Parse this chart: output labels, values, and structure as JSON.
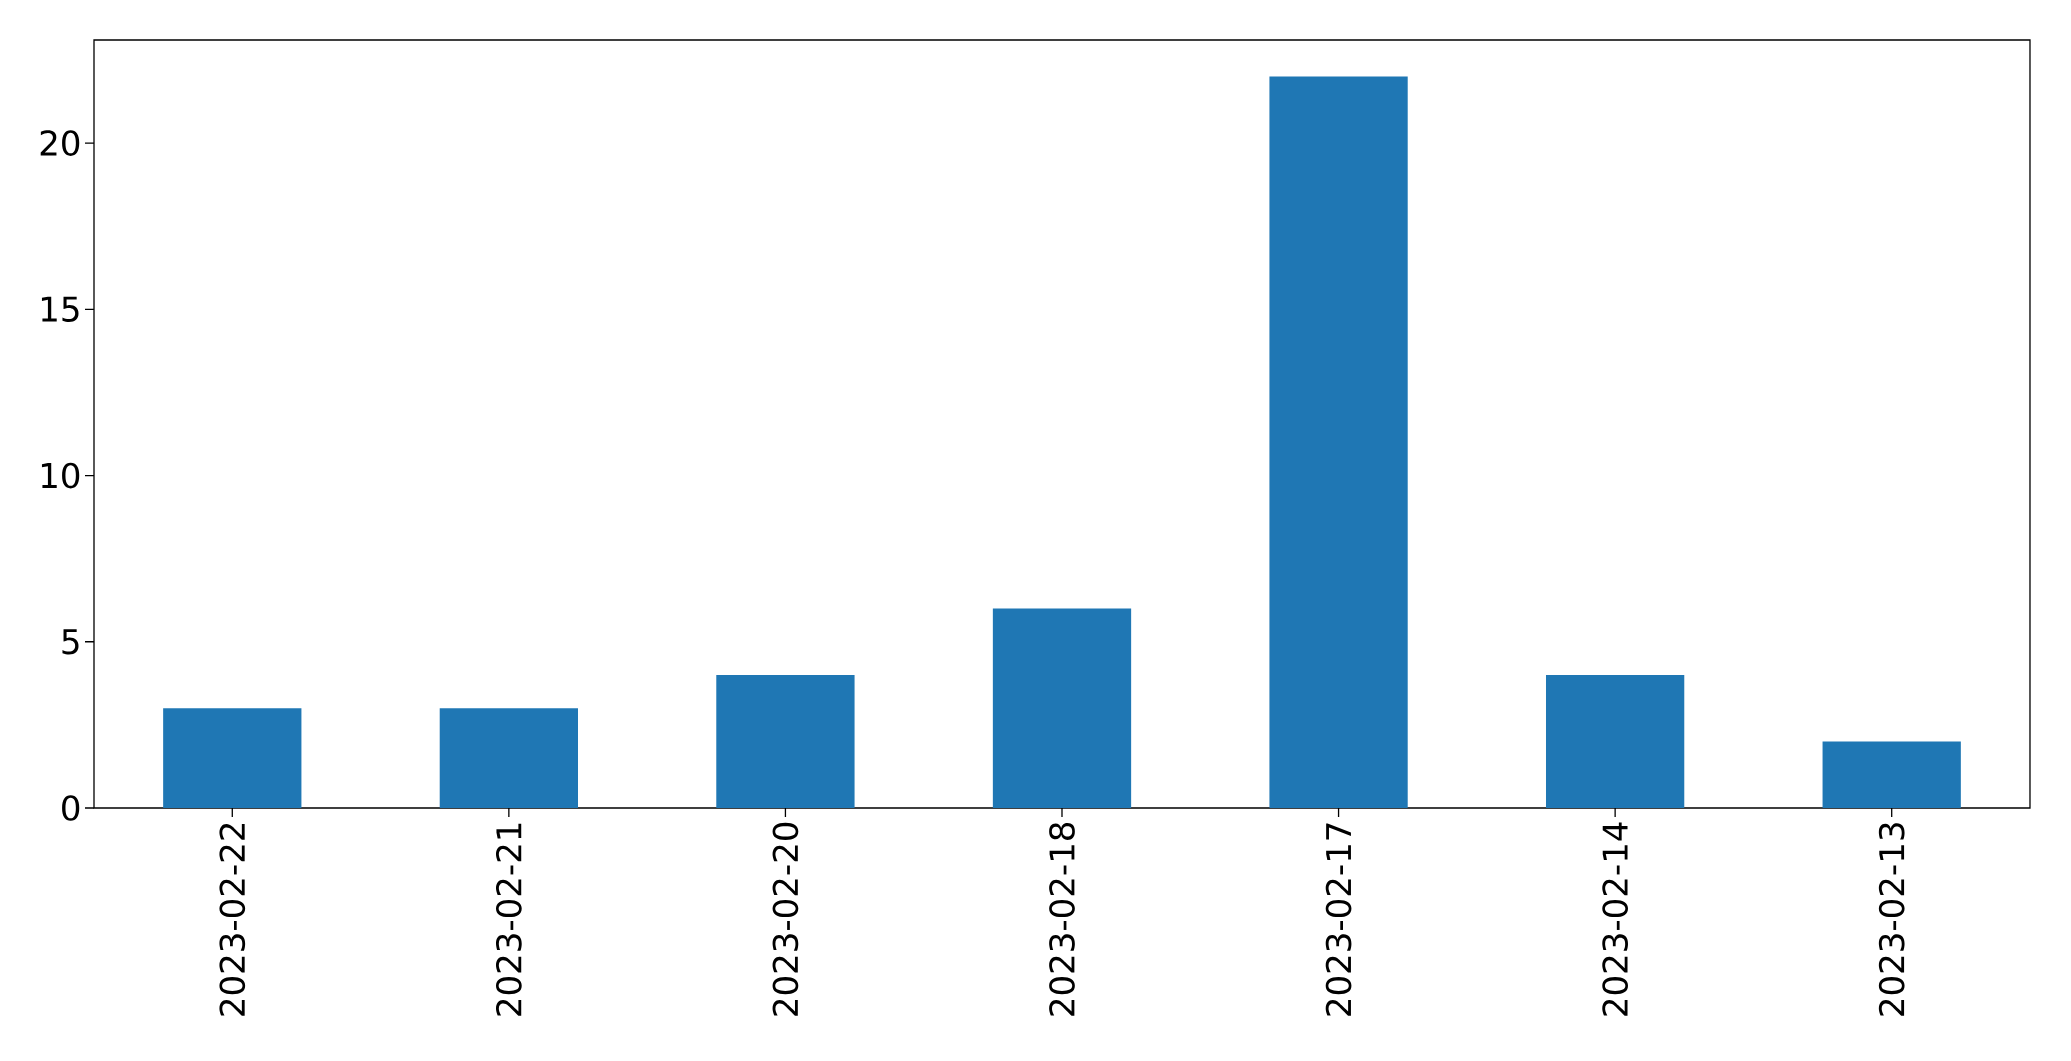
{
  "chart_data": {
    "type": "bar",
    "categories": [
      "2023-02-22",
      "2023-02-21",
      "2023-02-20",
      "2023-02-18",
      "2023-02-17",
      "2023-02-14",
      "2023-02-13"
    ],
    "values": [
      3,
      3,
      4,
      6,
      22,
      4,
      2
    ],
    "color": "#1f77b4",
    "ylim": [
      0,
      23.1
    ],
    "yticks": [
      0,
      5,
      10,
      15,
      20
    ]
  }
}
